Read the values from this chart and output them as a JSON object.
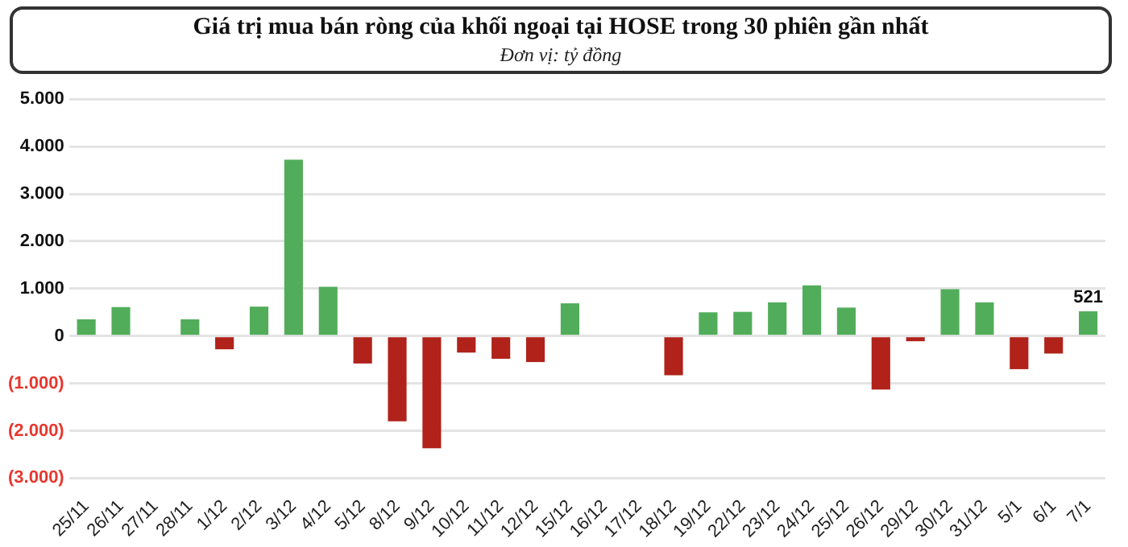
{
  "chart_data": {
    "type": "bar",
    "title": "Giá trị mua bán ròng của khối ngoại tại HOSE trong 30 phiên gần nhất",
    "subtitle": "Đơn vị: tỷ đồng",
    "categories": [
      "25/11",
      "26/11",
      "27/11",
      "28/11",
      "1/12",
      "2/12",
      "3/12",
      "4/12",
      "5/12",
      "8/12",
      "9/12",
      "10/12",
      "11/12",
      "12/12",
      "15/12",
      "16/12",
      "17/12",
      "18/12",
      "19/12",
      "22/12",
      "23/12",
      "24/12",
      "25/12",
      "26/12",
      "29/12",
      "30/12",
      "31/12",
      "5/1",
      "6/1",
      "7/1"
    ],
    "values": [
      350,
      610,
      0,
      350,
      -280,
      620,
      3720,
      1040,
      -580,
      -1800,
      -2370,
      -350,
      -480,
      -550,
      690,
      0,
      0,
      -830,
      500,
      510,
      710,
      1070,
      600,
      -1130,
      -110,
      990,
      710,
      -700,
      -370,
      521
    ],
    "colors": [
      "#52ad5b",
      "#52ad5b",
      "#52ad5b",
      "#52ad5b",
      "#b0221a",
      "#52ad5b",
      "#52ad5b",
      "#52ad5b",
      "#b0221a",
      "#b0221a",
      "#b0221a",
      "#b0221a",
      "#b0221a",
      "#b0221a",
      "#52ad5b",
      "#52ad5b",
      "#52ad5b",
      "#b0221a",
      "#52ad5b",
      "#52ad5b",
      "#52ad5b",
      "#52ad5b",
      "#52ad5b",
      "#b0221a",
      "#b0221a",
      "#52ad5b",
      "#52ad5b",
      "#b0221a",
      "#b0221a",
      "#52ad5b"
    ],
    "value_labels": [
      null,
      null,
      null,
      null,
      null,
      null,
      null,
      null,
      null,
      null,
      null,
      null,
      null,
      null,
      null,
      null,
      null,
      null,
      null,
      null,
      null,
      null,
      null,
      null,
      null,
      null,
      null,
      null,
      null,
      "521"
    ],
    "ylim": [
      -3000,
      5000
    ],
    "yticks": [
      {
        "value": -3000,
        "label": "(3.000)"
      },
      {
        "value": -2000,
        "label": "(2.000)"
      },
      {
        "value": -1000,
        "label": "(1.000)"
      },
      {
        "value": 0,
        "label": "0"
      },
      {
        "value": 1000,
        "label": "1.000"
      },
      {
        "value": 2000,
        "label": "2.000"
      },
      {
        "value": 3000,
        "label": "3.000"
      },
      {
        "value": 4000,
        "label": "4.000"
      },
      {
        "value": 5000,
        "label": "5.000"
      }
    ],
    "grid": "y",
    "legend": false
  }
}
